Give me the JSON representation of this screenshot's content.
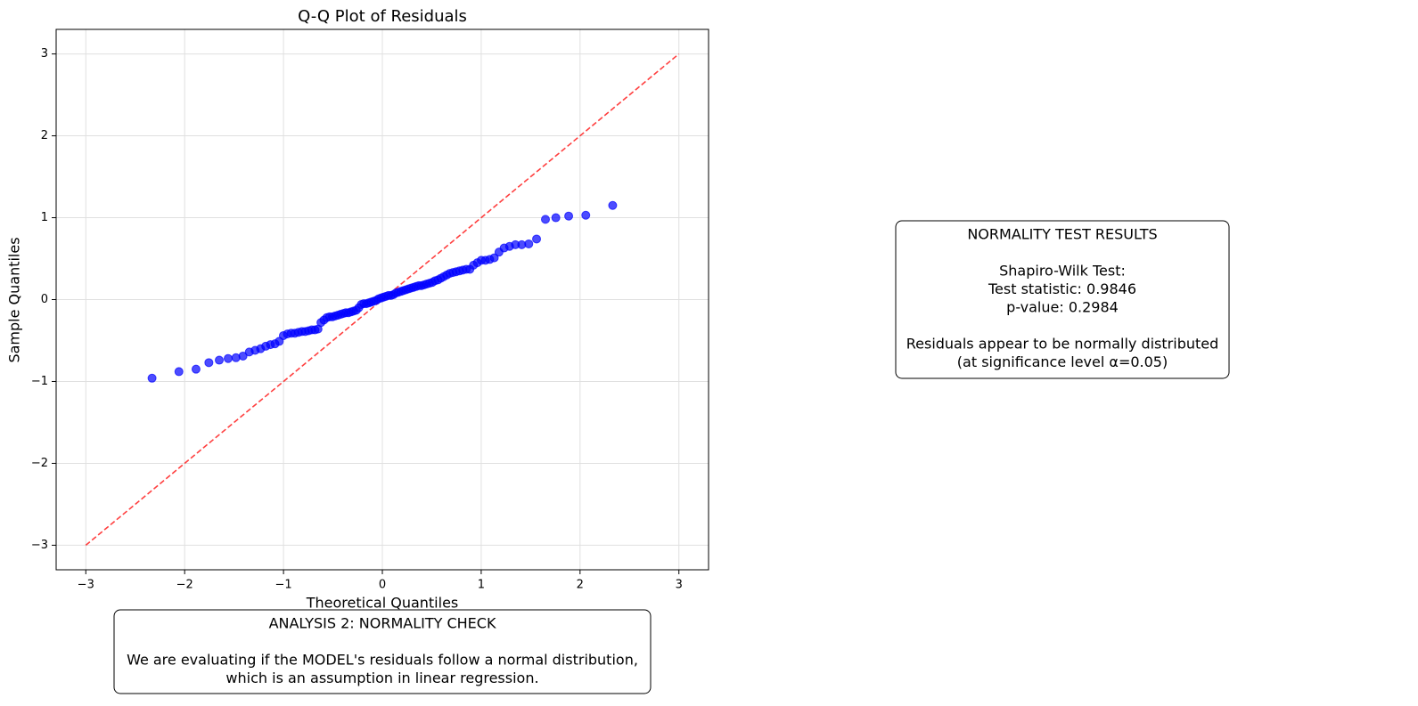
{
  "chart_data": {
    "type": "scatter",
    "title": "Q-Q Plot of Residuals",
    "x_label": "Theoretical Quantiles",
    "y_label": "Sample Quantiles",
    "xlim": [
      -3.3,
      3.3
    ],
    "ylim": [
      -3.3,
      3.3
    ],
    "xticks": [
      {
        "value": -3,
        "label": "−3"
      },
      {
        "value": -2,
        "label": "−2"
      },
      {
        "value": -1,
        "label": "−1"
      },
      0,
      1,
      2,
      3
    ],
    "yticks": [
      {
        "value": -3,
        "label": "−3"
      },
      {
        "value": -2,
        "label": "−2"
      },
      {
        "value": -1,
        "label": "−1"
      },
      0,
      1,
      2,
      3
    ],
    "grid": true,
    "series": [
      {
        "color": "#0000ff",
        "x": [
          -2.33,
          -2.058,
          -1.885,
          -1.755,
          -1.65,
          -1.56,
          -1.481,
          -1.41,
          -1.346,
          -1.287,
          -1.232,
          -1.18,
          -1.132,
          -1.086,
          -1.043,
          -1.001,
          -0.961,
          -0.922,
          -0.885,
          -0.849,
          -0.814,
          -0.78,
          -0.746,
          -0.714,
          -0.682,
          -0.651,
          -0.621,
          -0.591,
          -0.562,
          -0.533,
          -0.505,
          -0.477,
          -0.449,
          -0.422,
          -0.395,
          -0.369,
          -0.342,
          -0.316,
          -0.29,
          -0.264,
          -0.239,
          -0.213,
          -0.188,
          -0.162,
          -0.137,
          -0.112,
          -0.087,
          -0.062,
          -0.037,
          -0.012,
          0.012,
          0.037,
          0.062,
          0.087,
          0.112,
          0.137,
          0.162,
          0.188,
          0.213,
          0.239,
          0.264,
          0.29,
          0.316,
          0.342,
          0.369,
          0.395,
          0.422,
          0.449,
          0.477,
          0.505,
          0.533,
          0.562,
          0.591,
          0.621,
          0.651,
          0.682,
          0.714,
          0.746,
          0.78,
          0.814,
          0.849,
          0.885,
          0.922,
          0.961,
          1.001,
          1.043,
          1.086,
          1.132,
          1.18,
          1.232,
          1.287,
          1.346,
          1.41,
          1.481,
          1.56,
          1.65,
          1.755,
          1.885,
          2.058,
          2.33
        ],
        "values": [
          -0.96,
          -0.88,
          -0.85,
          -0.77,
          -0.74,
          -0.72,
          -0.71,
          -0.69,
          -0.64,
          -0.62,
          -0.6,
          -0.57,
          -0.55,
          -0.54,
          -0.51,
          -0.44,
          -0.42,
          -0.41,
          -0.41,
          -0.4,
          -0.39,
          -0.39,
          -0.38,
          -0.37,
          -0.37,
          -0.36,
          -0.28,
          -0.25,
          -0.22,
          -0.21,
          -0.21,
          -0.2,
          -0.19,
          -0.18,
          -0.17,
          -0.16,
          -0.16,
          -0.15,
          -0.14,
          -0.13,
          -0.1,
          -0.06,
          -0.05,
          -0.05,
          -0.04,
          -0.03,
          -0.02,
          -0.01,
          0.01,
          0.02,
          0.03,
          0.04,
          0.05,
          0.05,
          0.06,
          0.08,
          0.09,
          0.1,
          0.11,
          0.12,
          0.13,
          0.14,
          0.15,
          0.16,
          0.17,
          0.17,
          0.18,
          0.19,
          0.2,
          0.21,
          0.23,
          0.24,
          0.26,
          0.28,
          0.3,
          0.32,
          0.33,
          0.34,
          0.35,
          0.36,
          0.37,
          0.37,
          0.42,
          0.45,
          0.48,
          0.48,
          0.49,
          0.51,
          0.58,
          0.63,
          0.65,
          0.67,
          0.67,
          0.68,
          0.74,
          0.98,
          1.0,
          1.02,
          1.03,
          1.15
        ]
      }
    ],
    "reference_line": {
      "color": "#ff0000",
      "x": [
        -3,
        3
      ],
      "values": [
        -3,
        3
      ]
    },
    "annotations": [
      {
        "paragraphs": [
          [
            "ANALYSIS 2: NORMALITY CHECK"
          ],
          [
            "We are evaluating if the MODEL's residuals follow a normal distribution,",
            "which is an assumption in linear regression."
          ]
        ]
      },
      {
        "paragraphs": [
          [
            "NORMALITY TEST RESULTS"
          ],
          [
            "Shapiro-Wilk Test:",
            "Test statistic: 0.9846",
            "p-value: 0.2984"
          ],
          [
            "Residuals appear to be normally distributed",
            "(at significance level α=0.05)"
          ]
        ]
      }
    ]
  }
}
